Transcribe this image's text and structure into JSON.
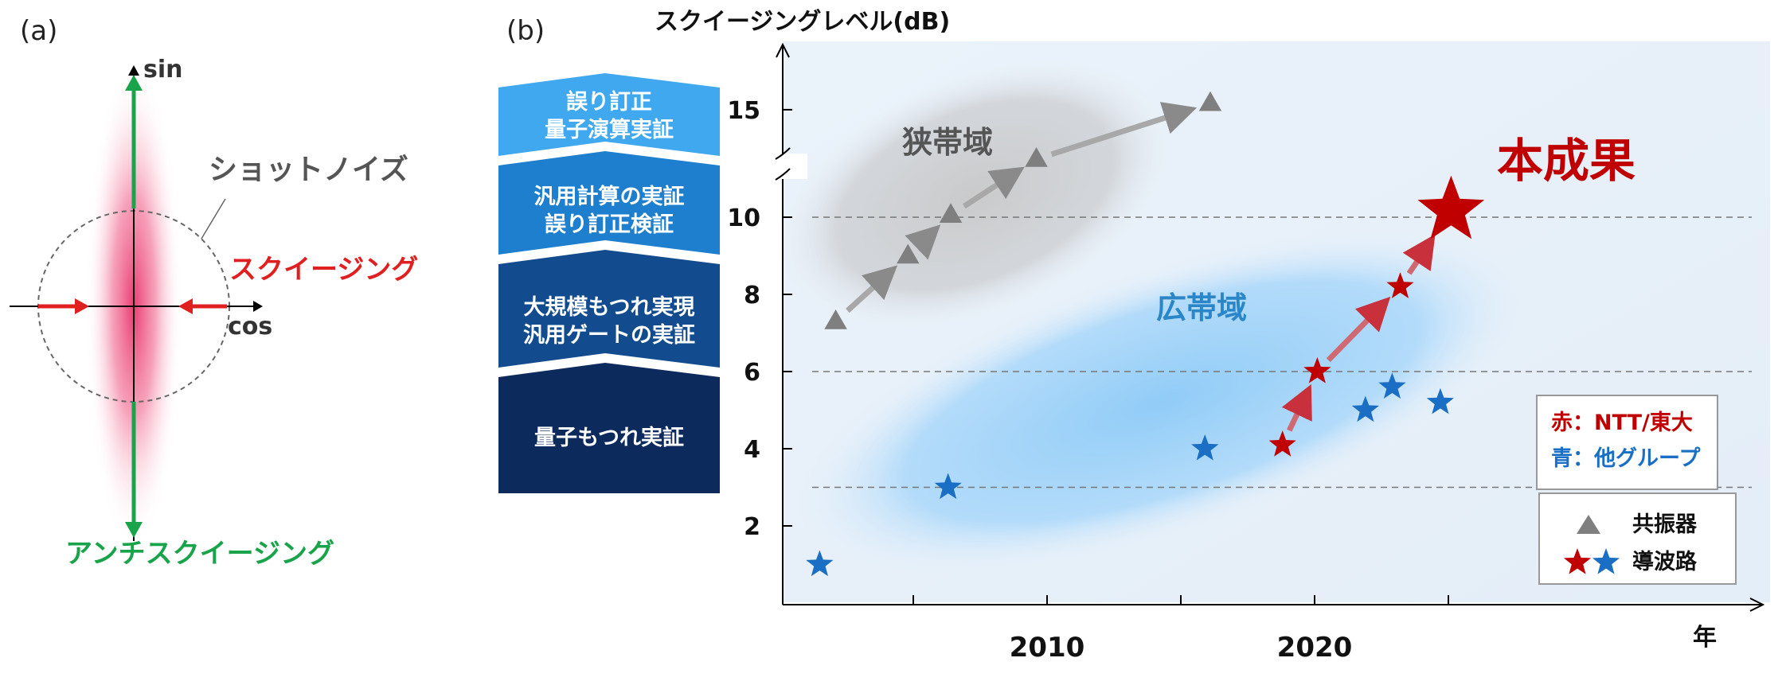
{
  "panel_a": {
    "label": "(a)",
    "axis_sin": "sin",
    "axis_cos": "cos",
    "shot_noise": "ショットノイズ",
    "squeezing": "スクイージング",
    "antisqueezing": "アンチスクイージング"
  },
  "panel_b": {
    "label": "(b)",
    "milestones": [
      {
        "line1": "誤り訂正",
        "line2": "量子演算実証"
      },
      {
        "line1": "汎用計算の実証",
        "line2": "誤り訂正検証"
      },
      {
        "line1": "大規模もつれ実現",
        "line2": "汎用ゲートの実証"
      },
      {
        "line1": "量子もつれ実証",
        "line2": ""
      }
    ],
    "narrowband": "狭帯域",
    "broadband": "広帯域",
    "this_result": "本成果",
    "legend_color_red": "赤：NTT/東大",
    "legend_color_blue": "青：他グループ",
    "legend_resonator": "共振器",
    "legend_waveguide": "導波路"
  },
  "chart_data": {
    "type": "scatter",
    "title": "",
    "ylabel": "スクイージングレベル(dB)",
    "xlabel": "年",
    "x_ticks": [
      2010,
      2020
    ],
    "y_ticks_lower": [
      2,
      4,
      6,
      8,
      10
    ],
    "y_ticks_upper": [
      15
    ],
    "y_axis_break": true,
    "gridlines_dB": [
      10,
      6,
      3
    ],
    "series": [
      {
        "name": "共振器",
        "marker": "triangle",
        "color": "#7f7f7f",
        "points": [
          [
            2002.1,
            7.3
          ],
          [
            2004.8,
            9.0
          ],
          [
            2006.4,
            10.1
          ],
          [
            2009.6,
            12.7
          ],
          [
            2016.1,
            15.3
          ]
        ]
      },
      {
        "name": "導波路",
        "marker": "star",
        "color": "#c00000",
        "points": [
          [
            2018.8,
            4.1
          ],
          [
            2020.1,
            6.0
          ],
          [
            2023.2,
            8.2
          ],
          [
            2025.1,
            10.3
          ]
        ]
      },
      {
        "name": "導波路",
        "marker": "star",
        "color": "#1a6fc4",
        "points": [
          [
            2001.5,
            1.0
          ],
          [
            2006.3,
            3.0
          ],
          [
            2015.9,
            4.0
          ],
          [
            2021.9,
            5.0
          ],
          [
            2022.9,
            5.6
          ],
          [
            2024.7,
            5.2
          ]
        ]
      }
    ]
  }
}
